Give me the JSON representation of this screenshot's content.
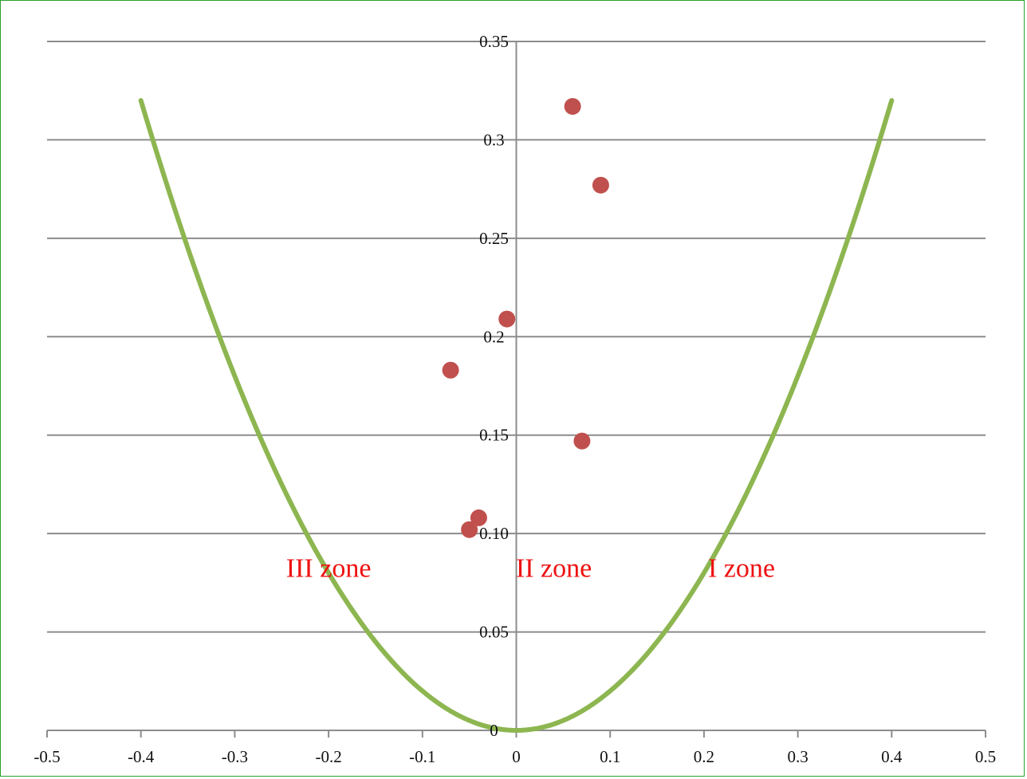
{
  "chart_data": {
    "type": "scatter",
    "title": "",
    "xlabel": "",
    "ylabel": "",
    "xlim": [
      -0.5,
      0.5
    ],
    "ylim": [
      0,
      0.35
    ],
    "x_ticks": [
      "-0.5",
      "-0.4",
      "-0.3",
      "-0.2",
      "-0.1",
      "0",
      "0.1",
      "0.2",
      "0.3",
      "0.4",
      "0.5"
    ],
    "x_tick_values": [
      -0.5,
      -0.4,
      -0.3,
      -0.2,
      -0.1,
      0,
      0.1,
      0.2,
      0.3,
      0.4,
      0.5
    ],
    "y_ticks": [
      "0",
      "0.05",
      "0.10",
      "0.15",
      "0.2",
      "0.25",
      "0.3",
      "0.35"
    ],
    "y_tick_values": [
      0,
      0.05,
      0.1,
      0.15,
      0.2,
      0.25,
      0.3,
      0.35
    ],
    "grid": "horizontal",
    "curve": {
      "equation": "y = 2x^2",
      "x_range": [
        -0.4,
        0.4
      ],
      "color": "#8db650"
    },
    "points": {
      "color": "#c0504d",
      "x": [
        0.06,
        0.09,
        -0.01,
        -0.07,
        0.07,
        -0.04,
        -0.05
      ],
      "y": [
        0.317,
        0.277,
        0.209,
        0.183,
        0.147,
        0.108,
        0.102
      ]
    },
    "annotations": [
      {
        "text": "III zone",
        "x": -0.2,
        "y": 0.078
      },
      {
        "text": "II zone",
        "x": 0.04,
        "y": 0.078
      },
      {
        "text": "I zone",
        "x": 0.24,
        "y": 0.078
      }
    ]
  }
}
